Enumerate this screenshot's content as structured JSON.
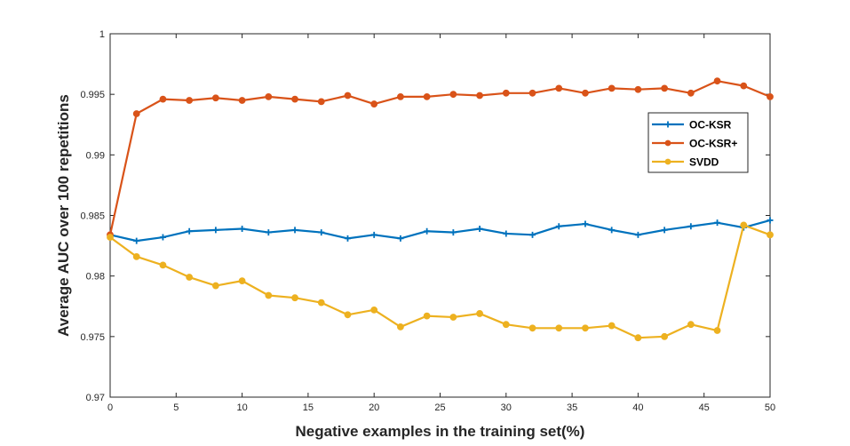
{
  "chart_data": {
    "type": "line",
    "title": "",
    "xlabel": "Negative examples in the training set(%)",
    "ylabel": "Average AUC over 100 repetitions",
    "xlim": [
      0,
      50
    ],
    "ylim": [
      0.97,
      1
    ],
    "xticks": [
      0,
      5,
      10,
      15,
      20,
      25,
      30,
      35,
      40,
      45,
      50
    ],
    "yticks": [
      0.97,
      0.975,
      0.98,
      0.985,
      0.99,
      0.995,
      1
    ],
    "ytick_labels": [
      "0.97",
      "0.975",
      "0.98",
      "0.985",
      "0.99",
      "0.995",
      "1"
    ],
    "grid": false,
    "legend_position": "top-right",
    "x": [
      0,
      2,
      4,
      6,
      8,
      10,
      12,
      14,
      16,
      18,
      20,
      22,
      24,
      26,
      28,
      30,
      32,
      34,
      36,
      38,
      40,
      42,
      44,
      46,
      48,
      50
    ],
    "series": [
      {
        "name": "OC-KSR",
        "color": "#0072BD",
        "marker": "plus",
        "values": [
          0.9834,
          0.9829,
          0.9832,
          0.9837,
          0.9838,
          0.9839,
          0.9836,
          0.9838,
          0.9836,
          0.9831,
          0.9834,
          0.9831,
          0.9837,
          0.9836,
          0.9839,
          0.9835,
          0.9834,
          0.9841,
          0.9843,
          0.9838,
          0.9834,
          0.9838,
          0.9841,
          0.9844,
          0.984,
          0.9846
        ]
      },
      {
        "name": "OC-KSR+",
        "color": "#D95319",
        "marker": "dot",
        "values": [
          0.9834,
          0.9934,
          0.9946,
          0.9945,
          0.9947,
          0.9945,
          0.9948,
          0.9946,
          0.9944,
          0.9949,
          0.9942,
          0.9948,
          0.9948,
          0.995,
          0.9949,
          0.9951,
          0.9951,
          0.9955,
          0.9951,
          0.9955,
          0.9954,
          0.9955,
          0.9951,
          0.9961,
          0.9957,
          0.9948
        ]
      },
      {
        "name": "SVDD",
        "color": "#EDB120",
        "marker": "dot",
        "values": [
          0.9832,
          0.9816,
          0.9809,
          0.9799,
          0.9792,
          0.9796,
          0.9784,
          0.9782,
          0.9778,
          0.9768,
          0.9772,
          0.9758,
          0.9767,
          0.9766,
          0.9769,
          0.976,
          0.9757,
          0.9757,
          0.9757,
          0.9759,
          0.9749,
          0.975,
          0.976,
          0.9755,
          0.9842,
          0.9834
        ]
      }
    ]
  }
}
